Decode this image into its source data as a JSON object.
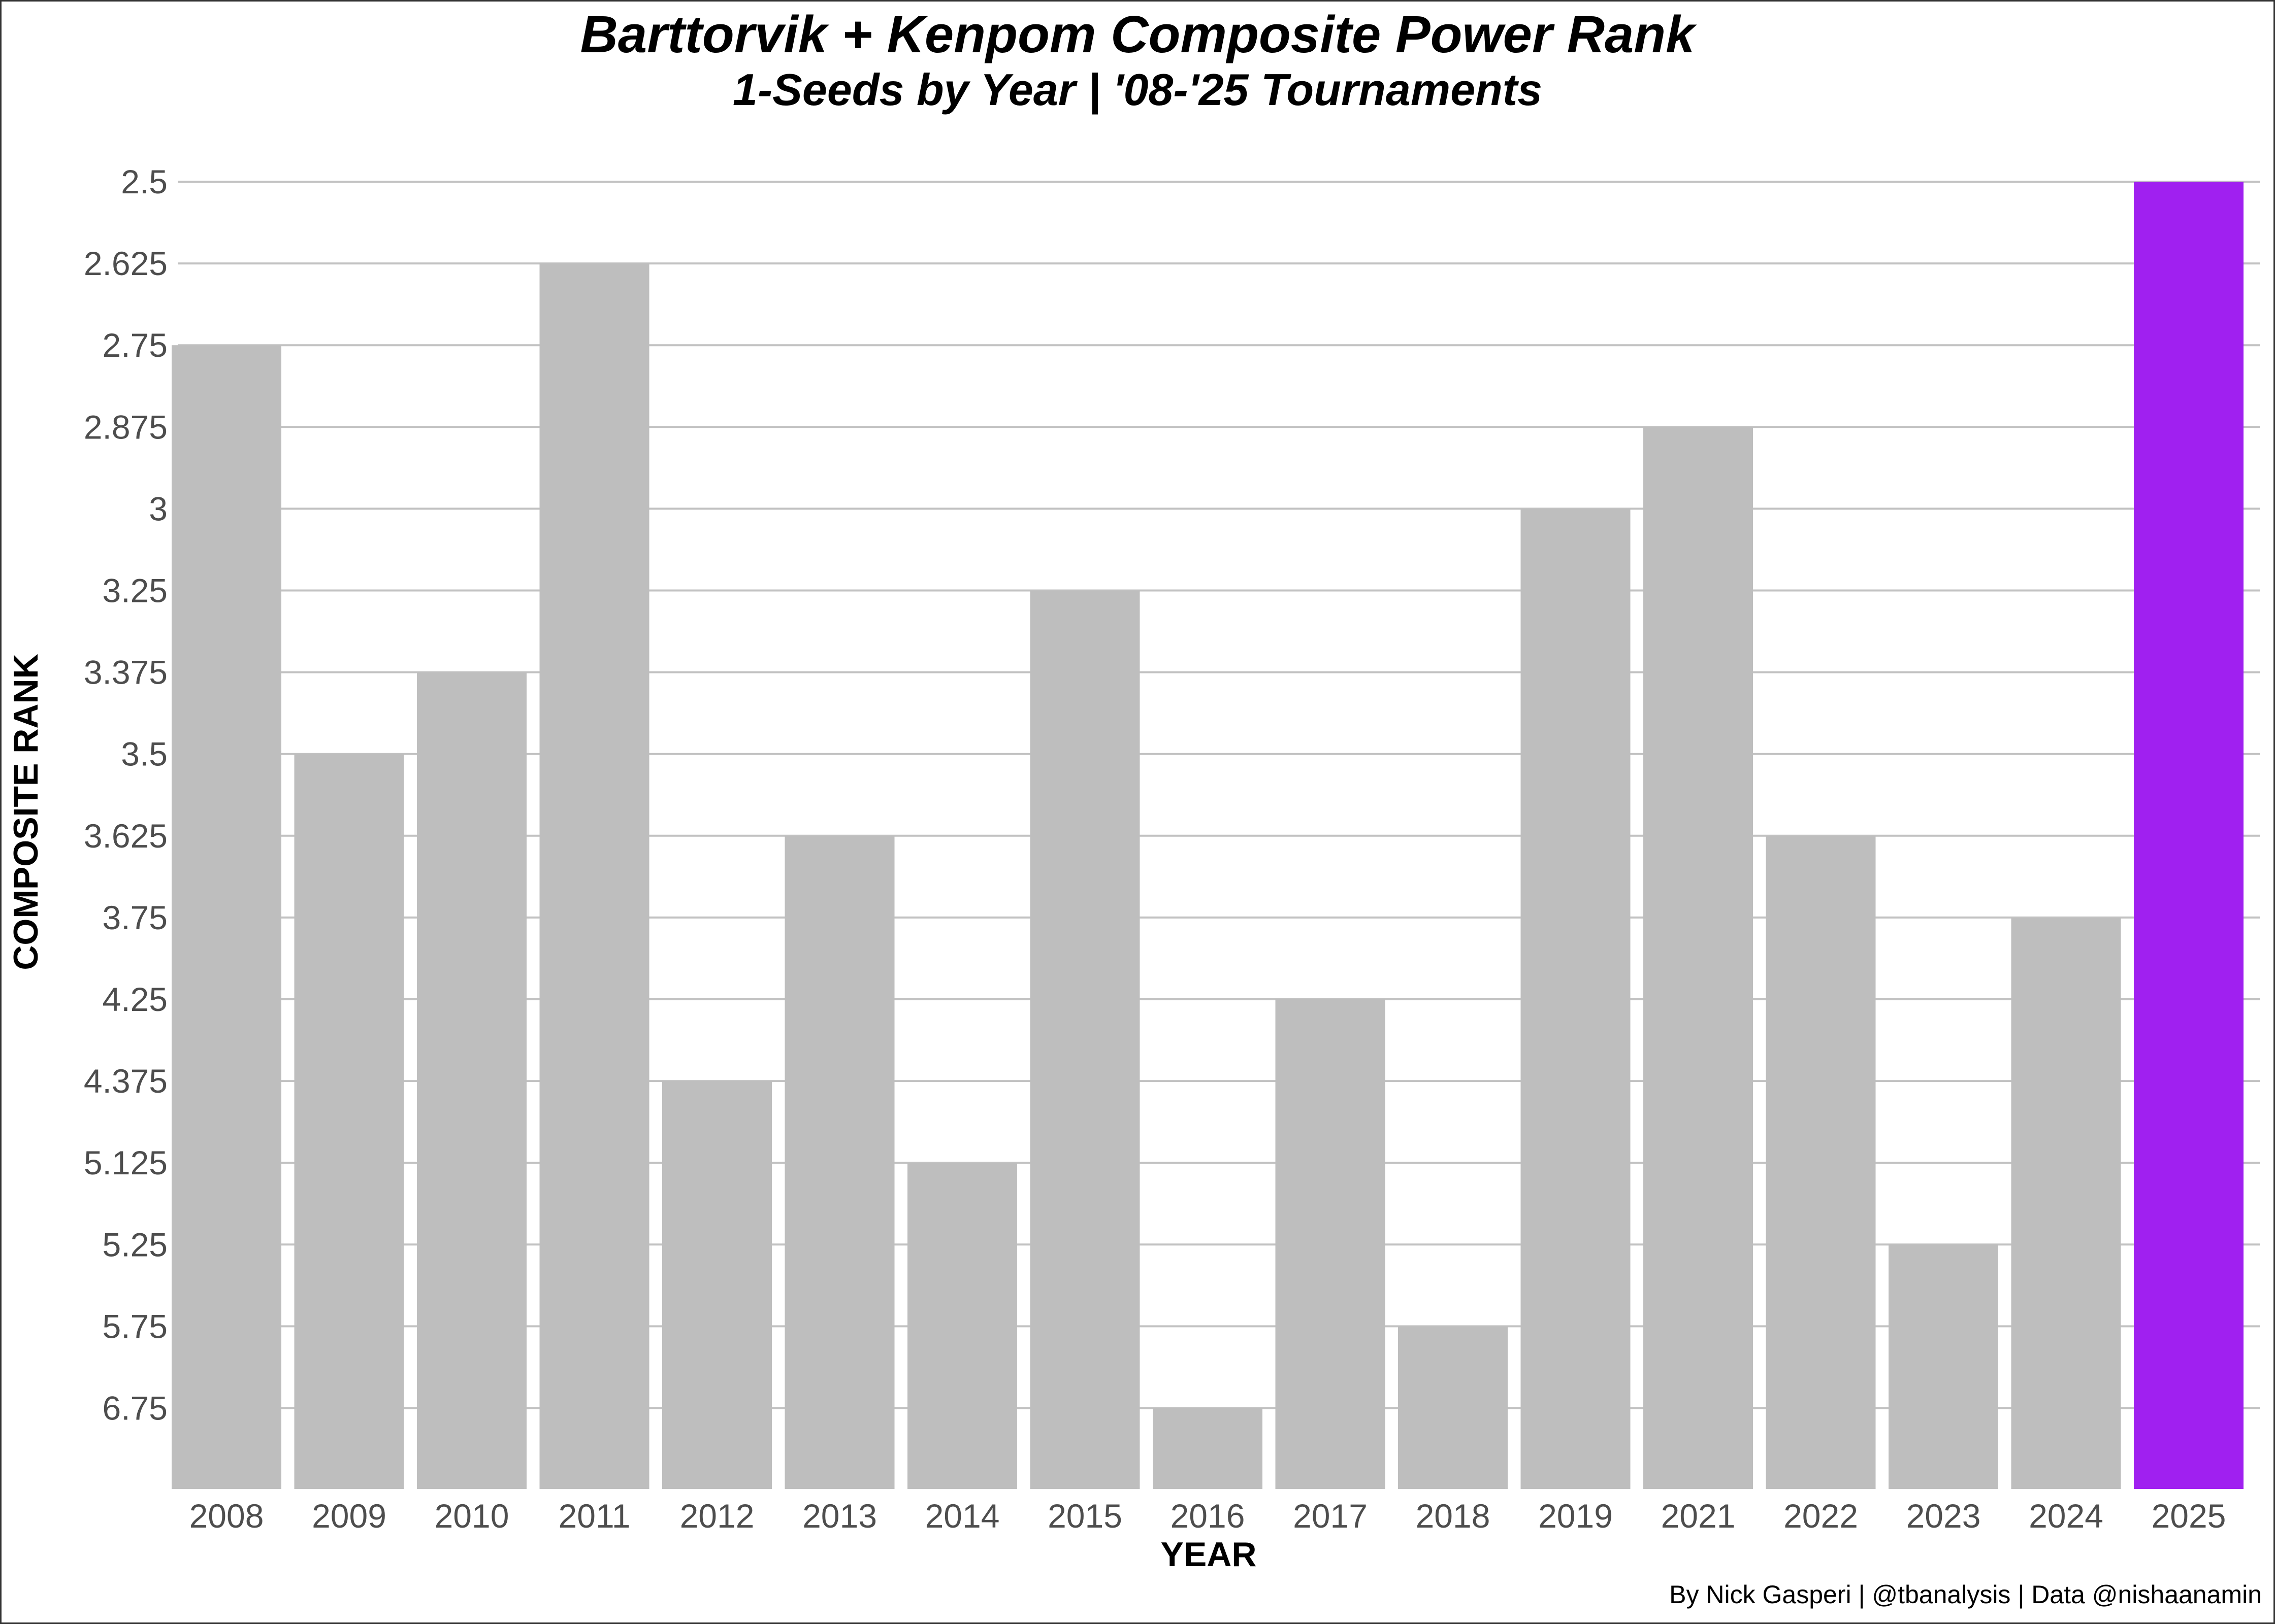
{
  "chart_data": {
    "type": "bar",
    "title": "Barttorvik + Kenpom Composite Power Rank",
    "subtitle": "1-Seeds by Year | '08-'25 Tournaments",
    "xlabel": "YEAR",
    "ylabel": "COMPOSITE RANK",
    "caption": "By Nick Gasperi | @tbanalysis | Data @nishaanamin",
    "categories": [
      "2008",
      "2009",
      "2010",
      "2011",
      "2012",
      "2013",
      "2014",
      "2015",
      "2016",
      "2017",
      "2018",
      "2019",
      "2021",
      "2022",
      "2023",
      "2024",
      "2025"
    ],
    "values": [
      2.75,
      3.5,
      3.375,
      2.625,
      4.375,
      3.625,
      5.125,
      3.25,
      6.75,
      4.25,
      5.75,
      3,
      2.875,
      3.625,
      5.25,
      3.75,
      2.5
    ],
    "y_ticks": [
      "2.5",
      "2.625",
      "2.75",
      "2.875",
      "3",
      "3.25",
      "3.375",
      "3.5",
      "3.625",
      "3.75",
      "4.25",
      "4.375",
      "5.125",
      "5.25",
      "5.75",
      "6.75"
    ],
    "y_scale": "discrete, reversed (lower rank = taller bar)",
    "grid": true,
    "legend": "none",
    "colors": {
      "default_bar": "#bebebe",
      "highlight_bar": "#a020f0",
      "gridline": "#c2c2c2"
    },
    "highlight": "2025"
  }
}
